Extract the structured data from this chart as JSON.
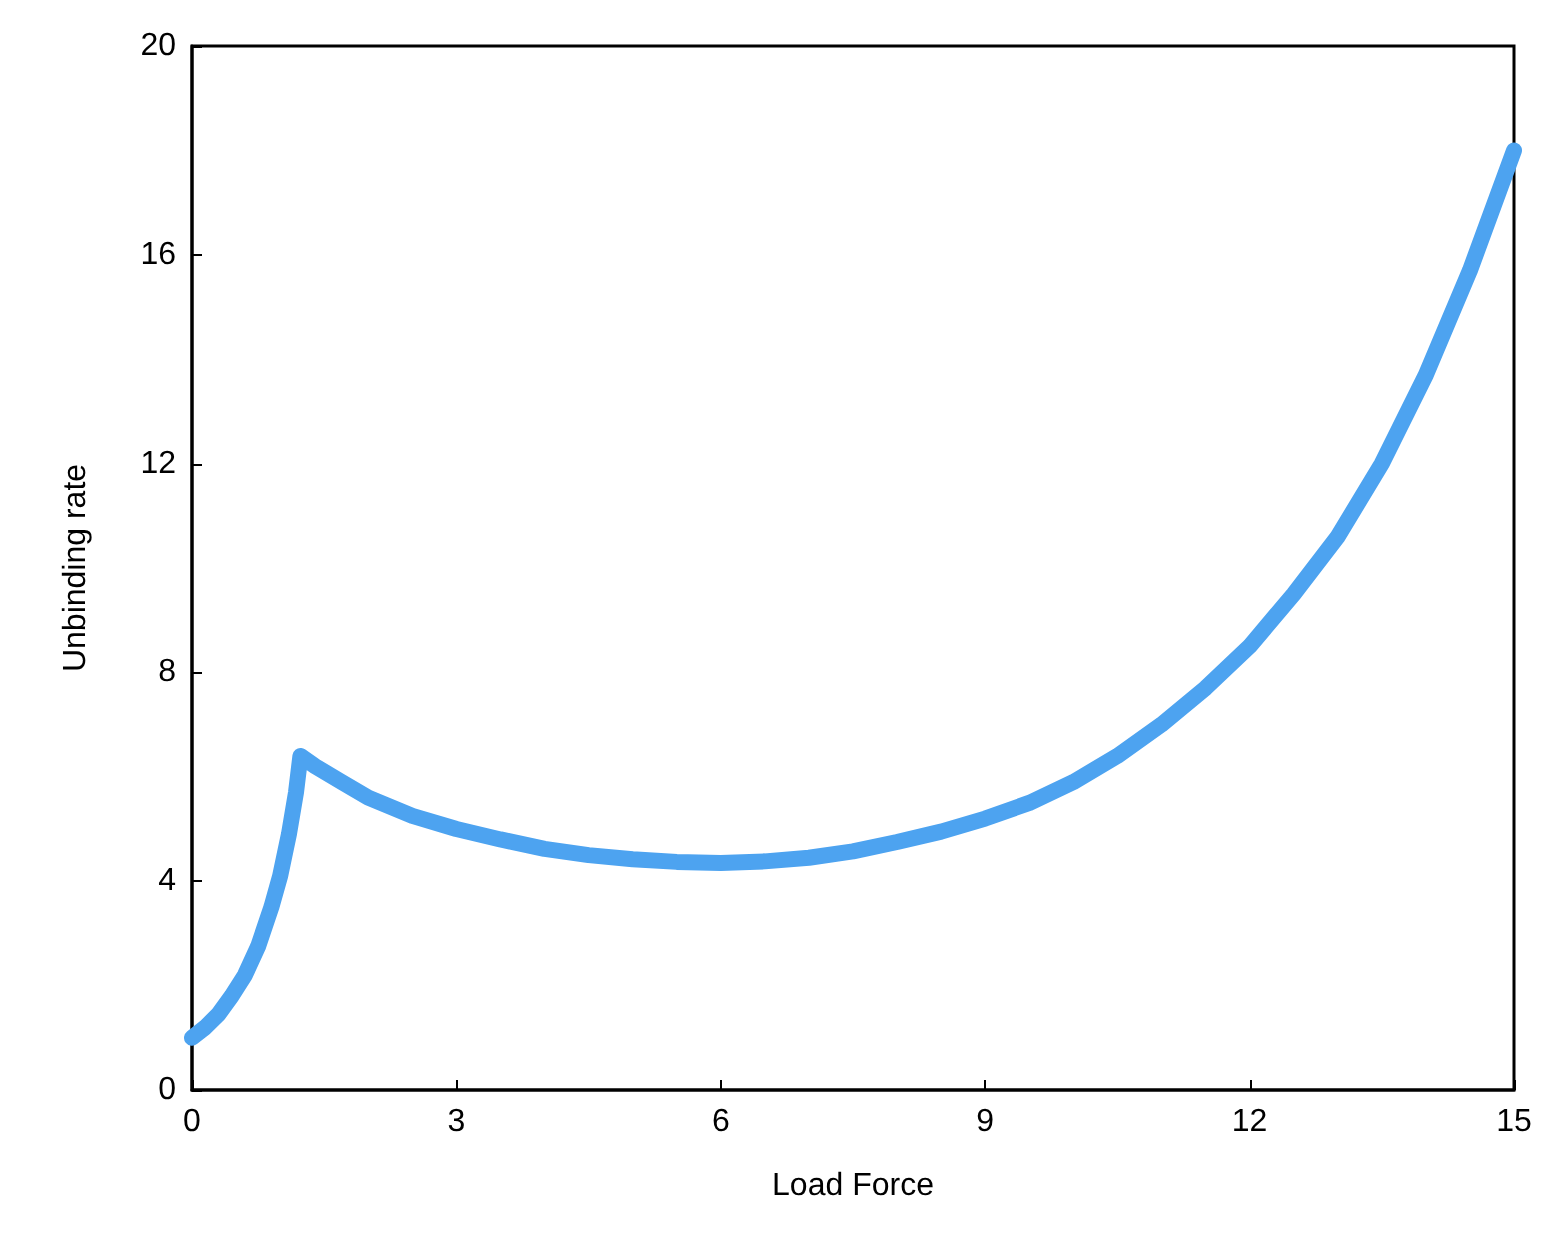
{
  "chart_data": {
    "type": "line",
    "xlabel": "Load Force",
    "ylabel": "Unbinding rate",
    "x": [
      0,
      0.15,
      0.3,
      0.45,
      0.6,
      0.75,
      0.9,
      1.0,
      1.1,
      1.18,
      1.23,
      1.4,
      1.7,
      2,
      2.5,
      3,
      3.5,
      4,
      4.5,
      5,
      5.5,
      6,
      6.5,
      7,
      7.5,
      8,
      8.5,
      9,
      9.5,
      10,
      10.5,
      11,
      11.5,
      12,
      12.5,
      13,
      13.5,
      14,
      14.5,
      15
    ],
    "series": [
      {
        "color": "#4da3f0",
        "values": [
          1,
          1.2,
          1.45,
          1.8,
          2.2,
          2.75,
          3.5,
          4.1,
          4.9,
          5.7,
          6.4,
          6.2,
          5.9,
          5.6,
          5.25,
          5.0,
          4.8,
          4.62,
          4.5,
          4.42,
          4.37,
          4.35,
          4.38,
          4.45,
          4.57,
          4.75,
          4.95,
          5.2,
          5.5,
          5.9,
          6.4,
          7.0,
          7.7,
          8.5,
          9.5,
          10.6,
          12.0,
          13.7,
          15.7,
          18
        ]
      }
    ],
    "xlim": [
      0,
      15
    ],
    "xticks": [
      0,
      3,
      6,
      9,
      12,
      15
    ],
    "ylim": [
      0,
      20
    ],
    "yticks": [
      0,
      4,
      8,
      12,
      16,
      20
    ],
    "grid": false,
    "line_style": "solid"
  }
}
